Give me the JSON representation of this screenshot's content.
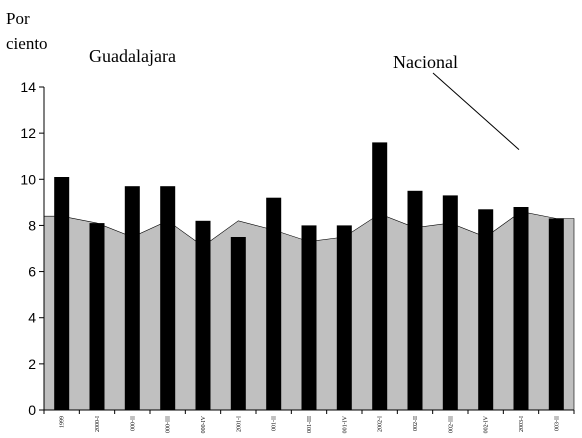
{
  "chart_data": {
    "type": "bar",
    "ylabel_lines": [
      "Por",
      "ciento"
    ],
    "annotations": {
      "left": "Guadalajara",
      "right": "Nacional"
    },
    "ylim": [
      0,
      14
    ],
    "yticks": [
      0,
      2,
      4,
      6,
      8,
      10,
      12,
      14
    ],
    "categories": [
      "1999",
      "2000-I",
      "2000-II",
      "2000-III",
      "2000-IV",
      "2001-I",
      "2001-II",
      "2001-III",
      "2001-IV",
      "2002-I",
      "2002-II",
      "2002-III",
      "2002-IV",
      "2003-I",
      "2003-II"
    ],
    "category_labels": [
      "1999",
      "2000-I",
      "000-II",
      "000-III",
      "000-IV",
      "2001-I",
      "001-II",
      "001-III",
      "001-IV",
      "2002-I",
      "002-II",
      "002-III",
      "002-IV",
      "2003-I",
      "003-II"
    ],
    "series": [
      {
        "name": "Guadalajara",
        "kind": "bar",
        "color": "#000000",
        "values": [
          10.1,
          8.1,
          9.7,
          9.7,
          8.2,
          7.5,
          9.2,
          8.0,
          8.0,
          11.6,
          9.5,
          9.3,
          8.7,
          8.8,
          8.3
        ]
      },
      {
        "name": "Nacional",
        "kind": "area",
        "color": "#c0c0c0",
        "values": [
          8.4,
          8.1,
          7.5,
          8.2,
          7.1,
          8.2,
          7.8,
          7.3,
          7.5,
          8.5,
          7.9,
          8.1,
          7.5,
          8.6,
          8.3
        ]
      }
    ],
    "grid": false,
    "legend": "none"
  }
}
